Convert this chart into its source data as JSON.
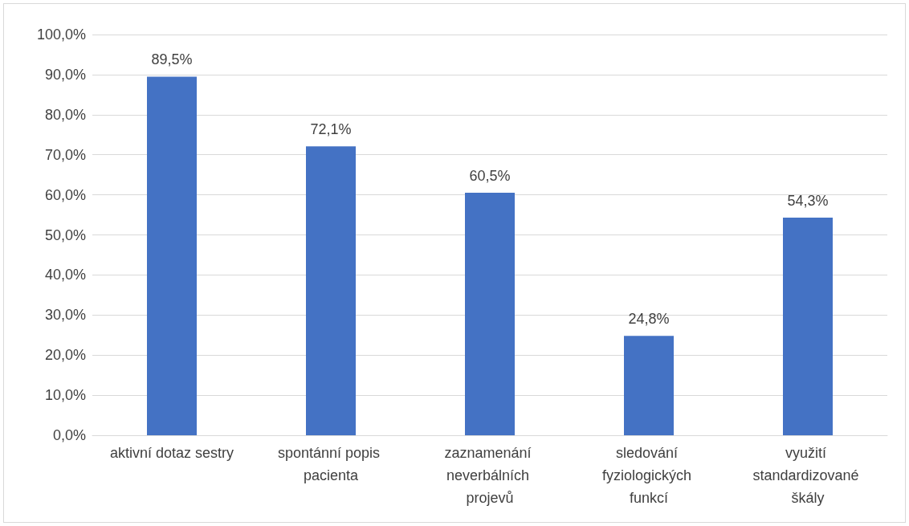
{
  "chart_data": {
    "type": "bar",
    "categories": [
      "aktivní dotaz sestry",
      "spontánní popis pacienta",
      "zaznamenání neverbálních projevů",
      "sledování fyziologických funkcí",
      "využití standardizované škály"
    ],
    "values": [
      89.5,
      72.1,
      60.5,
      24.8,
      54.3
    ],
    "value_labels": [
      "89,5%",
      "72,1%",
      "60,5%",
      "24,8%",
      "54,3%"
    ],
    "color": "#4472c4",
    "ylim": [
      0,
      100
    ],
    "yticks": [
      {
        "value": 0,
        "label": "0,0%"
      },
      {
        "value": 10,
        "label": "10,0%"
      },
      {
        "value": 20,
        "label": "20,0%"
      },
      {
        "value": 30,
        "label": "30,0%"
      },
      {
        "value": 40,
        "label": "40,0%"
      },
      {
        "value": 50,
        "label": "50,0%"
      },
      {
        "value": 60,
        "label": "60,0%"
      },
      {
        "value": 70,
        "label": "70,0%"
      },
      {
        "value": 80,
        "label": "80,0%"
      },
      {
        "value": 90,
        "label": "90,0%"
      },
      {
        "value": 100,
        "label": "100,0%"
      }
    ],
    "grid": "y"
  }
}
